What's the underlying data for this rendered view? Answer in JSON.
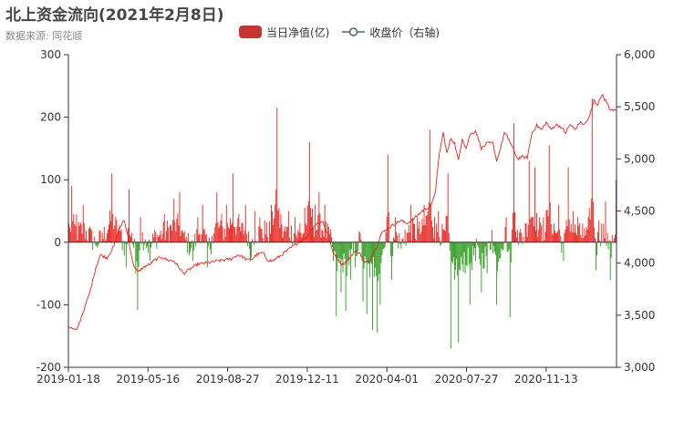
{
  "title": "北上资金流向(2021年2月8日)",
  "subtitle": "数据来源: 同花顺",
  "legend": {
    "bar_label": "当日净值(亿)",
    "line_label": "收盘价（右轴)"
  },
  "colors": {
    "positive_bar": "#e8231e",
    "negative_bar": "#2e9a1f",
    "line": "#e8231e",
    "legend_bar": "#c23531",
    "legend_line": "#2f4554",
    "axis": "#333333"
  },
  "chart_data": {
    "type": "bar+line",
    "x_ticks": [
      "2019-01-18",
      "2019-05-16",
      "2019-08-27",
      "2019-12-11",
      "2020-04-01",
      "2020-07-27",
      "2020-11-13"
    ],
    "left_axis": {
      "min": -200,
      "max": 300,
      "ticks": [
        "300",
        "200",
        "100",
        "0",
        "-100",
        "-200"
      ]
    },
    "right_axis": {
      "min": 3000,
      "max": 6000,
      "ticks": [
        "6,000",
        "5,500",
        "5,000",
        "4,500",
        "4,000",
        "3,500",
        "3,000"
      ]
    },
    "series": [
      {
        "name": "当日净值(亿)",
        "type": "bar",
        "axis": "left",
        "anchors": [
          [
            0,
            30
          ],
          [
            3,
            90
          ],
          [
            8,
            45
          ],
          [
            15,
            60
          ],
          [
            22,
            25
          ],
          [
            28,
            -5
          ],
          [
            35,
            15
          ],
          [
            45,
            110
          ],
          [
            55,
            20
          ],
          [
            60,
            -40
          ],
          [
            63,
            85
          ],
          [
            66,
            15
          ],
          [
            70,
            -50
          ],
          [
            72,
            -108
          ],
          [
            75,
            40
          ],
          [
            80,
            5
          ],
          [
            85,
            -30
          ],
          [
            90,
            20
          ],
          [
            100,
            45
          ],
          [
            110,
            70
          ],
          [
            116,
            80
          ],
          [
            120,
            15
          ],
          [
            130,
            -30
          ],
          [
            135,
            40
          ],
          [
            140,
            60
          ],
          [
            145,
            -40
          ],
          [
            150,
            10
          ],
          [
            155,
            80
          ],
          [
            160,
            45
          ],
          [
            165,
            60
          ],
          [
            172,
            110
          ],
          [
            178,
            45
          ],
          [
            185,
            60
          ],
          [
            190,
            -30
          ],
          [
            195,
            50
          ],
          [
            200,
            40
          ],
          [
            205,
            35
          ],
          [
            212,
            60
          ],
          [
            218,
            215
          ],
          [
            222,
            45
          ],
          [
            230,
            50
          ],
          [
            237,
            40
          ],
          [
            242,
            30
          ],
          [
            247,
            55
          ],
          [
            252,
            160
          ],
          [
            258,
            60
          ],
          [
            262,
            80
          ],
          [
            268,
            60
          ],
          [
            272,
            25
          ],
          [
            277,
            -30
          ],
          [
            280,
            -118
          ],
          [
            285,
            -80
          ],
          [
            290,
            -110
          ],
          [
            295,
            -60
          ],
          [
            300,
            -40
          ],
          [
            305,
            15
          ],
          [
            308,
            -95
          ],
          [
            312,
            -115
          ],
          [
            318,
            -140
          ],
          [
            320,
            -55
          ],
          [
            323,
            -145
          ],
          [
            326,
            -100
          ],
          [
            330,
            -10
          ],
          [
            334,
            140
          ],
          [
            338,
            -60
          ],
          [
            342,
            40
          ],
          [
            348,
            -10
          ],
          [
            352,
            20
          ],
          [
            358,
            60
          ],
          [
            365,
            40
          ],
          [
            372,
            60
          ],
          [
            378,
            180
          ],
          [
            383,
            40
          ],
          [
            387,
            50
          ],
          [
            393,
            20
          ],
          [
            397,
            110
          ],
          [
            400,
            -170
          ],
          [
            404,
            -60
          ],
          [
            408,
            -160
          ],
          [
            415,
            -50
          ],
          [
            420,
            -100
          ],
          [
            426,
            -30
          ],
          [
            432,
            -80
          ],
          [
            438,
            -50
          ],
          [
            443,
            20
          ],
          [
            448,
            -100
          ],
          [
            453,
            -10
          ],
          [
            458,
            40
          ],
          [
            462,
            -120
          ],
          [
            466,
            190
          ],
          [
            470,
            20
          ],
          [
            478,
            30
          ],
          [
            482,
            130
          ],
          [
            488,
            120
          ],
          [
            493,
            40
          ],
          [
            497,
            40
          ],
          [
            503,
            155
          ],
          [
            508,
            30
          ],
          [
            513,
            60
          ],
          [
            518,
            -30
          ],
          [
            523,
            120
          ],
          [
            528,
            50
          ],
          [
            533,
            40
          ],
          [
            538,
            30
          ],
          [
            543,
            20
          ],
          [
            548,
            230
          ],
          [
            552,
            -45
          ],
          [
            555,
            35
          ],
          [
            558,
            30
          ],
          [
            562,
            65
          ],
          [
            567,
            -60
          ],
          [
            570,
            0
          ],
          [
            573,
            100
          ]
        ]
      },
      {
        "name": "收盘价（右轴)",
        "type": "line",
        "axis": "right",
        "anchors": [
          [
            0,
            3390
          ],
          [
            8,
            3350
          ],
          [
            15,
            3530
          ],
          [
            22,
            3720
          ],
          [
            28,
            3950
          ],
          [
            33,
            4080
          ],
          [
            40,
            4050
          ],
          [
            47,
            4160
          ],
          [
            52,
            4320
          ],
          [
            58,
            4410
          ],
          [
            62,
            4250
          ],
          [
            67,
            4000
          ],
          [
            72,
            3910
          ],
          [
            78,
            3960
          ],
          [
            85,
            3990
          ],
          [
            90,
            4030
          ],
          [
            97,
            4060
          ],
          [
            103,
            4030
          ],
          [
            110,
            4020
          ],
          [
            116,
            3950
          ],
          [
            120,
            3900
          ],
          [
            128,
            3950
          ],
          [
            135,
            3990
          ],
          [
            143,
            4000
          ],
          [
            150,
            4010
          ],
          [
            155,
            4020
          ],
          [
            163,
            4030
          ],
          [
            170,
            4040
          ],
          [
            177,
            4080
          ],
          [
            182,
            4060
          ],
          [
            187,
            4030
          ],
          [
            192,
            4040
          ],
          [
            197,
            4080
          ],
          [
            203,
            4100
          ],
          [
            208,
            4030
          ],
          [
            213,
            4020
          ],
          [
            220,
            4060
          ],
          [
            230,
            4130
          ],
          [
            240,
            4200
          ],
          [
            250,
            4250
          ],
          [
            255,
            4340
          ],
          [
            260,
            4380
          ],
          [
            266,
            4400
          ],
          [
            271,
            4270
          ],
          [
            276,
            4120
          ],
          [
            281,
            4050
          ],
          [
            285,
            3990
          ],
          [
            289,
            4000
          ],
          [
            294,
            4050
          ],
          [
            298,
            4100
          ],
          [
            302,
            4120
          ],
          [
            305,
            4090
          ],
          [
            310,
            4000
          ],
          [
            315,
            4030
          ],
          [
            318,
            4080
          ],
          [
            322,
            4150
          ],
          [
            327,
            4280
          ],
          [
            332,
            4320
          ],
          [
            337,
            4350
          ],
          [
            342,
            4380
          ],
          [
            348,
            4410
          ],
          [
            353,
            4380
          ],
          [
            358,
            4400
          ],
          [
            364,
            4450
          ],
          [
            370,
            4500
          ],
          [
            376,
            4530
          ],
          [
            380,
            4560
          ],
          [
            384,
            4700
          ],
          [
            388,
            5050
          ],
          [
            392,
            5250
          ],
          [
            396,
            5050
          ],
          [
            400,
            5200
          ],
          [
            404,
            5150
          ],
          [
            408,
            4980
          ],
          [
            412,
            5200
          ],
          [
            416,
            5100
          ],
          [
            420,
            5230
          ],
          [
            426,
            5270
          ],
          [
            432,
            5100
          ],
          [
            438,
            5150
          ],
          [
            444,
            5150
          ],
          [
            448,
            4980
          ],
          [
            452,
            5100
          ],
          [
            456,
            5250
          ],
          [
            460,
            5200
          ],
          [
            465,
            5100
          ],
          [
            470,
            5000
          ],
          [
            475,
            5020
          ],
          [
            480,
            5010
          ],
          [
            485,
            5250
          ],
          [
            490,
            5320
          ],
          [
            495,
            5280
          ],
          [
            500,
            5350
          ],
          [
            505,
            5280
          ],
          [
            510,
            5330
          ],
          [
            515,
            5310
          ],
          [
            520,
            5250
          ],
          [
            525,
            5330
          ],
          [
            530,
            5280
          ],
          [
            535,
            5350
          ],
          [
            540,
            5330
          ],
          [
            545,
            5400
          ],
          [
            550,
            5560
          ],
          [
            554,
            5520
          ],
          [
            558,
            5620
          ],
          [
            562,
            5560
          ],
          [
            566,
            5480
          ],
          [
            570,
            5460
          ],
          [
            573,
            5480
          ]
        ]
      }
    ],
    "n_days": 574,
    "grid": false,
    "legend_position": "top-center"
  }
}
